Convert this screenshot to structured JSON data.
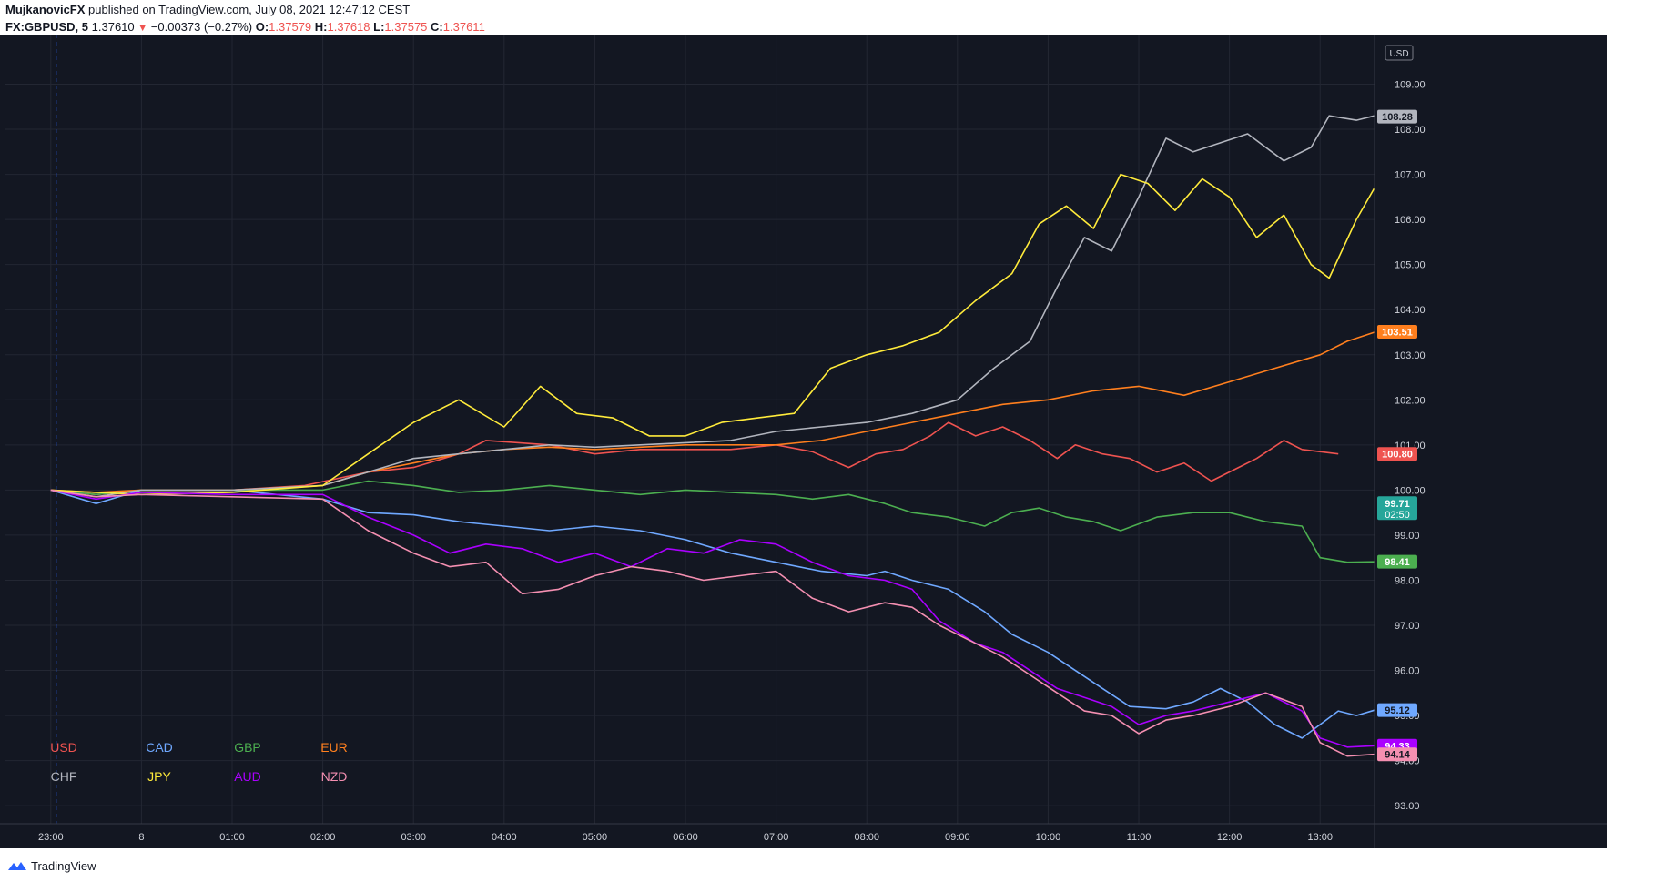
{
  "header": {
    "author": "MujkanovicFX",
    "published": "published on TradingView.com, July 08, 2021 12:47:12 CEST",
    "symbol": "FX:GBPUSD, 5",
    "last": "1.37610",
    "change": "−0.00373 (−0.27%)",
    "o_label": "O:",
    "o": "1.37579",
    "h_label": "H:",
    "h": "1.37618",
    "l_label": "L:",
    "l": "1.37575",
    "c_label": "C:",
    "c": "1.37611"
  },
  "footer": {
    "brand": "TradingView"
  },
  "colors": {
    "background": "#131722",
    "grid": "#232733",
    "axis_text": "#d1d4dc"
  },
  "chart_data": {
    "type": "line",
    "currency_unit": "USD",
    "x_ticks": [
      "23:00",
      "8",
      "01:00",
      "02:00",
      "03:00",
      "04:00",
      "05:00",
      "06:00",
      "07:00",
      "08:00",
      "09:00",
      "10:00",
      "11:00",
      "12:00",
      "13:00"
    ],
    "y_ticks": [
      "93.00",
      "94.00",
      "95.00",
      "96.00",
      "97.00",
      "98.00",
      "99.00",
      "100.00",
      "101.00",
      "102.00",
      "103.00",
      "104.00",
      "105.00",
      "106.00",
      "107.00",
      "108.00",
      "109.00"
    ],
    "ylim": [
      92.6,
      110.1
    ],
    "xlim": [
      -0.5,
      14.6
    ],
    "countdown": "02:50",
    "series": [
      {
        "name": "USD",
        "color": "#ef5350",
        "last_label": "100.80",
        "points": [
          [
            0,
            100
          ],
          [
            0.5,
            99.9
          ],
          [
            1,
            100
          ],
          [
            2,
            100
          ],
          [
            2.8,
            100.1
          ],
          [
            3.5,
            100.4
          ],
          [
            4,
            100.5
          ],
          [
            4.5,
            100.8
          ],
          [
            4.8,
            101.1
          ],
          [
            5.5,
            101
          ],
          [
            6,
            100.8
          ],
          [
            6.5,
            100.9
          ],
          [
            7,
            100.9
          ],
          [
            7.5,
            100.9
          ],
          [
            8,
            101
          ],
          [
            8.4,
            100.85
          ],
          [
            8.8,
            100.5
          ],
          [
            9.1,
            100.8
          ],
          [
            9.4,
            100.9
          ],
          [
            9.7,
            101.2
          ],
          [
            9.9,
            101.5
          ],
          [
            10.2,
            101.2
          ],
          [
            10.5,
            101.4
          ],
          [
            10.8,
            101.1
          ],
          [
            11.1,
            100.7
          ],
          [
            11.3,
            101
          ],
          [
            11.6,
            100.8
          ],
          [
            11.9,
            100.7
          ],
          [
            12.2,
            100.4
          ],
          [
            12.5,
            100.6
          ],
          [
            12.8,
            100.2
          ],
          [
            13.1,
            100.5
          ],
          [
            13.3,
            100.7
          ],
          [
            13.6,
            101.1
          ],
          [
            13.8,
            100.9
          ],
          [
            14.2,
            100.8
          ]
        ]
      },
      {
        "name": "CAD",
        "color": "#6fa8ff",
        "last_label": "95.12",
        "points": [
          [
            0,
            100
          ],
          [
            0.5,
            99.7
          ],
          [
            1,
            100
          ],
          [
            2,
            100
          ],
          [
            3,
            99.8
          ],
          [
            3.5,
            99.5
          ],
          [
            4,
            99.45
          ],
          [
            4.5,
            99.3
          ],
          [
            5,
            99.2
          ],
          [
            5.5,
            99.1
          ],
          [
            6,
            99.2
          ],
          [
            6.5,
            99.1
          ],
          [
            7,
            98.9
          ],
          [
            7.5,
            98.6
          ],
          [
            8,
            98.4
          ],
          [
            8.5,
            98.2
          ],
          [
            9,
            98.1
          ],
          [
            9.2,
            98.2
          ],
          [
            9.5,
            98
          ],
          [
            9.9,
            97.8
          ],
          [
            10.3,
            97.3
          ],
          [
            10.6,
            96.8
          ],
          [
            11,
            96.4
          ],
          [
            11.3,
            96
          ],
          [
            11.6,
            95.6
          ],
          [
            11.9,
            95.2
          ],
          [
            12.3,
            95.15
          ],
          [
            12.6,
            95.3
          ],
          [
            12.9,
            95.6
          ],
          [
            13.2,
            95.3
          ],
          [
            13.5,
            94.8
          ],
          [
            13.8,
            94.5
          ],
          [
            14,
            94.8
          ],
          [
            14.2,
            95.1
          ],
          [
            14.4,
            95.0
          ],
          [
            14.6,
            95.12
          ]
        ]
      },
      {
        "name": "GBP",
        "color": "#4caf50",
        "last_label": "98.41",
        "points": [
          [
            0,
            100
          ],
          [
            0.5,
            99.9
          ],
          [
            1,
            100
          ],
          [
            2,
            100
          ],
          [
            3,
            100
          ],
          [
            3.5,
            100.2
          ],
          [
            4,
            100.1
          ],
          [
            4.5,
            99.95
          ],
          [
            5,
            100
          ],
          [
            5.5,
            100.1
          ],
          [
            6,
            100.0
          ],
          [
            6.5,
            99.9
          ],
          [
            7,
            100
          ],
          [
            7.5,
            99.95
          ],
          [
            8,
            99.9
          ],
          [
            8.4,
            99.8
          ],
          [
            8.8,
            99.9
          ],
          [
            9.2,
            99.7
          ],
          [
            9.5,
            99.5
          ],
          [
            9.9,
            99.4
          ],
          [
            10.3,
            99.2
          ],
          [
            10.6,
            99.5
          ],
          [
            10.9,
            99.6
          ],
          [
            11.2,
            99.4
          ],
          [
            11.5,
            99.3
          ],
          [
            11.8,
            99.1
          ],
          [
            12.2,
            99.4
          ],
          [
            12.6,
            99.5
          ],
          [
            13,
            99.5
          ],
          [
            13.4,
            99.3
          ],
          [
            13.8,
            99.2
          ],
          [
            14,
            98.5
          ],
          [
            14.3,
            98.4
          ],
          [
            14.6,
            98.41
          ]
        ]
      },
      {
        "name": "EUR",
        "color": "#ff7f1e",
        "last_label": "103.51",
        "points": [
          [
            0,
            100
          ],
          [
            0.5,
            99.95
          ],
          [
            1,
            100
          ],
          [
            2,
            100
          ],
          [
            3,
            100.1
          ],
          [
            3.5,
            100.4
          ],
          [
            4,
            100.6
          ],
          [
            4.5,
            100.8
          ],
          [
            5,
            100.9
          ],
          [
            5.5,
            100.95
          ],
          [
            6,
            100.9
          ],
          [
            6.5,
            100.95
          ],
          [
            7,
            101
          ],
          [
            7.5,
            101
          ],
          [
            8,
            101
          ],
          [
            8.5,
            101.1
          ],
          [
            9,
            101.3
          ],
          [
            9.5,
            101.5
          ],
          [
            10,
            101.7
          ],
          [
            10.5,
            101.9
          ],
          [
            11,
            102.0
          ],
          [
            11.5,
            102.2
          ],
          [
            12,
            102.3
          ],
          [
            12.5,
            102.1
          ],
          [
            13,
            102.4
          ],
          [
            13.5,
            102.7
          ],
          [
            14,
            103
          ],
          [
            14.3,
            103.3
          ],
          [
            14.6,
            103.5
          ]
        ]
      },
      {
        "name": "CHF",
        "color": "#b2b5be",
        "last_label": "108.28",
        "points": [
          [
            0,
            100
          ],
          [
            0.5,
            99.85
          ],
          [
            1,
            100
          ],
          [
            2,
            100
          ],
          [
            3,
            100.1
          ],
          [
            3.5,
            100.4
          ],
          [
            4,
            100.7
          ],
          [
            4.5,
            100.8
          ],
          [
            5,
            100.9
          ],
          [
            5.5,
            101
          ],
          [
            6,
            100.95
          ],
          [
            6.5,
            101
          ],
          [
            7,
            101.05
          ],
          [
            7.5,
            101.1
          ],
          [
            8,
            101.3
          ],
          [
            8.5,
            101.4
          ],
          [
            9,
            101.5
          ],
          [
            9.5,
            101.7
          ],
          [
            10,
            102
          ],
          [
            10.4,
            102.7
          ],
          [
            10.8,
            103.3
          ],
          [
            11.1,
            104.5
          ],
          [
            11.4,
            105.6
          ],
          [
            11.7,
            105.3
          ],
          [
            12,
            106.5
          ],
          [
            12.3,
            107.8
          ],
          [
            12.6,
            107.5
          ],
          [
            12.9,
            107.7
          ],
          [
            13.2,
            107.9
          ],
          [
            13.6,
            107.3
          ],
          [
            13.9,
            107.6
          ],
          [
            14.1,
            108.3
          ],
          [
            14.4,
            108.2
          ],
          [
            14.6,
            108.3
          ]
        ]
      },
      {
        "name": "JPY",
        "color": "#ffeb3b",
        "last_label": "",
        "points": [
          [
            0,
            100
          ],
          [
            0.5,
            99.95
          ],
          [
            1,
            99.9
          ],
          [
            2,
            99.95
          ],
          [
            3,
            100.1
          ],
          [
            3.5,
            100.8
          ],
          [
            4,
            101.5
          ],
          [
            4.5,
            102
          ],
          [
            5,
            101.4
          ],
          [
            5.4,
            102.3
          ],
          [
            5.8,
            101.7
          ],
          [
            6.2,
            101.6
          ],
          [
            6.6,
            101.2
          ],
          [
            7,
            101.2
          ],
          [
            7.4,
            101.5
          ],
          [
            7.8,
            101.6
          ],
          [
            8.2,
            101.7
          ],
          [
            8.6,
            102.7
          ],
          [
            9,
            103
          ],
          [
            9.4,
            103.2
          ],
          [
            9.8,
            103.5
          ],
          [
            10.2,
            104.2
          ],
          [
            10.6,
            104.8
          ],
          [
            10.9,
            105.9
          ],
          [
            11.2,
            106.3
          ],
          [
            11.5,
            105.8
          ],
          [
            11.8,
            107
          ],
          [
            12.1,
            106.8
          ],
          [
            12.4,
            106.2
          ],
          [
            12.7,
            106.9
          ],
          [
            13,
            106.5
          ],
          [
            13.3,
            105.6
          ],
          [
            13.6,
            106.1
          ],
          [
            13.9,
            105
          ],
          [
            14.1,
            104.7
          ],
          [
            14.4,
            106
          ],
          [
            14.6,
            106.7
          ]
        ]
      },
      {
        "name": "AUD",
        "color": "#aa00ff",
        "last_label": "94.33",
        "points": [
          [
            0,
            100
          ],
          [
            0.5,
            99.8
          ],
          [
            1,
            99.95
          ],
          [
            2,
            99.9
          ],
          [
            3,
            99.9
          ],
          [
            3.5,
            99.4
          ],
          [
            4,
            99.0
          ],
          [
            4.4,
            98.6
          ],
          [
            4.8,
            98.8
          ],
          [
            5.2,
            98.7
          ],
          [
            5.6,
            98.4
          ],
          [
            6,
            98.6
          ],
          [
            6.4,
            98.3
          ],
          [
            6.8,
            98.7
          ],
          [
            7.2,
            98.6
          ],
          [
            7.6,
            98.9
          ],
          [
            8,
            98.8
          ],
          [
            8.4,
            98.4
          ],
          [
            8.8,
            98.1
          ],
          [
            9.2,
            98.0
          ],
          [
            9.5,
            97.8
          ],
          [
            9.8,
            97.1
          ],
          [
            10.2,
            96.6
          ],
          [
            10.5,
            96.4
          ],
          [
            10.8,
            96.0
          ],
          [
            11.1,
            95.6
          ],
          [
            11.4,
            95.4
          ],
          [
            11.7,
            95.2
          ],
          [
            12,
            94.8
          ],
          [
            12.3,
            95.0
          ],
          [
            12.6,
            95.1
          ],
          [
            13,
            95.3
          ],
          [
            13.4,
            95.5
          ],
          [
            13.8,
            95.1
          ],
          [
            14,
            94.5
          ],
          [
            14.3,
            94.3
          ],
          [
            14.6,
            94.33
          ]
        ]
      },
      {
        "name": "NZD",
        "color": "#f48fb1",
        "last_label": "94.14",
        "points": [
          [
            0,
            100
          ],
          [
            0.5,
            99.85
          ],
          [
            1,
            99.9
          ],
          [
            2,
            99.85
          ],
          [
            3,
            99.8
          ],
          [
            3.5,
            99.1
          ],
          [
            4,
            98.6
          ],
          [
            4.4,
            98.3
          ],
          [
            4.8,
            98.4
          ],
          [
            5.2,
            97.7
          ],
          [
            5.6,
            97.8
          ],
          [
            6,
            98.1
          ],
          [
            6.4,
            98.3
          ],
          [
            6.8,
            98.2
          ],
          [
            7.2,
            98.0
          ],
          [
            7.6,
            98.1
          ],
          [
            8,
            98.2
          ],
          [
            8.4,
            97.6
          ],
          [
            8.8,
            97.3
          ],
          [
            9.2,
            97.5
          ],
          [
            9.5,
            97.4
          ],
          [
            9.8,
            97.0
          ],
          [
            10.2,
            96.6
          ],
          [
            10.5,
            96.3
          ],
          [
            10.8,
            95.9
          ],
          [
            11.1,
            95.5
          ],
          [
            11.4,
            95.1
          ],
          [
            11.7,
            95.0
          ],
          [
            12,
            94.6
          ],
          [
            12.3,
            94.9
          ],
          [
            12.6,
            95.0
          ],
          [
            13,
            95.2
          ],
          [
            13.4,
            95.5
          ],
          [
            13.8,
            95.2
          ],
          [
            14,
            94.4
          ],
          [
            14.3,
            94.1
          ],
          [
            14.6,
            94.14
          ]
        ]
      }
    ],
    "current_price": {
      "value": "99.71",
      "color": "#26a69a"
    }
  }
}
